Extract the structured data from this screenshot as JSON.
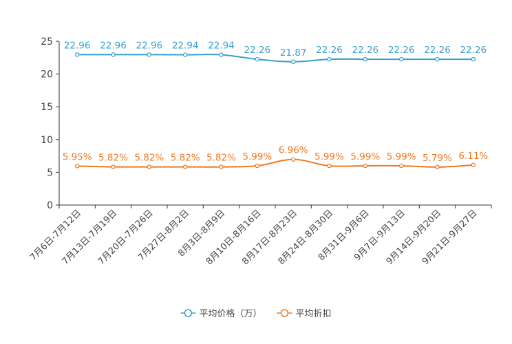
{
  "chart_data": {
    "type": "line",
    "title": "",
    "xlabel": "",
    "ylabel": "",
    "ylim": [
      0,
      25
    ],
    "yticks": [
      0,
      5,
      10,
      15,
      20,
      25
    ],
    "grid": false,
    "legend_position": "bottom-center",
    "categories": [
      "7月6日-7月12日",
      "7月13日-7月19日",
      "7月20日-7月26日",
      "7月27日-8月2日",
      "8月3日-8月9日",
      "8月10日-8月16日",
      "8月17日-8月23日",
      "8月24日-8月30日",
      "8月31日-9月6日",
      "9月7日-9月13日",
      "9月14日-9月20日",
      "9月21日-9月27日"
    ],
    "series": [
      {
        "name": "平均价格（万）",
        "color": "#3a9fd0",
        "values": [
          22.96,
          22.96,
          22.96,
          22.94,
          22.94,
          22.26,
          21.87,
          22.26,
          22.26,
          22.26,
          22.26,
          22.26
        ],
        "labels": [
          "22.96",
          "22.96",
          "22.96",
          "22.94",
          "22.94",
          "22.26",
          "21.87",
          "22.26",
          "22.26",
          "22.26",
          "22.26",
          "22.26"
        ]
      },
      {
        "name": "平均折扣",
        "color": "#f07820",
        "values": [
          5.95,
          5.82,
          5.82,
          5.82,
          5.82,
          5.99,
          6.96,
          5.99,
          5.99,
          5.99,
          5.79,
          6.11
        ],
        "labels": [
          "5.95%",
          "5.82%",
          "5.82%",
          "5.82%",
          "5.82%",
          "5.99%",
          "6.96%",
          "5.99%",
          "5.99%",
          "5.99%",
          "5.79%",
          "6.11%"
        ]
      }
    ]
  }
}
